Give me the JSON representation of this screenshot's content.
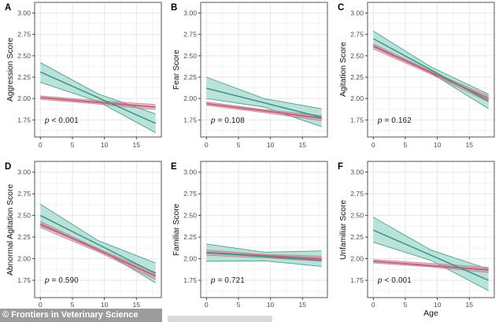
{
  "figure": {
    "watermark": "© Frontiers in Veterinary Science",
    "x_axis_label": "Age"
  },
  "chart_data": {
    "type": "line",
    "description": "Six-panel faceted regression figure: behaviour scores vs Age, each panel has a green trend line with wide confidence ribbon and a red trend line with narrow confidence ribbon, with p-value annotation",
    "x_ticks": [
      0,
      5,
      10,
      15
    ],
    "y_ticks": [
      "1.75",
      "2.00",
      "2.25",
      "2.50",
      "2.75",
      "3.00"
    ],
    "xlim": [
      -0.9,
      18.9
    ],
    "ylim": [
      1.55,
      3.125
    ],
    "xlabel": "Age",
    "grid": "on",
    "legend": "none",
    "colors": {
      "green_line": "#3f9189",
      "green_band": "#b9e3d8",
      "green_edge": "#4f9e92",
      "red_line": "#bc5a6f",
      "red_band": "#c97f92",
      "red_edge": "#c4748a",
      "grid_major": "#e6e6e6",
      "grid_minor": "#f2f2f2",
      "border": "#545454",
      "tick": "#333333",
      "tick_text": "#4d4d4d"
    },
    "panels": [
      {
        "label": "A",
        "ylabel": "Aggression Score",
        "p_symbol": "p",
        "p_rest": " < 0.001",
        "green": {
          "x": [
            0,
            18
          ],
          "y": [
            2.31,
            1.71
          ],
          "band_x": [
            0,
            9,
            18
          ],
          "upper": [
            2.42,
            2.055,
            1.82
          ],
          "lower": [
            2.19,
            1.965,
            1.6
          ]
        },
        "red": {
          "x": [
            0,
            18
          ],
          "y": [
            2.01,
            1.9
          ],
          "band_x": [
            0,
            9,
            18
          ],
          "upper": [
            2.03,
            1.975,
            1.93
          ],
          "lower": [
            1.99,
            1.935,
            1.87
          ]
        }
      },
      {
        "label": "B",
        "ylabel": "Fear Score",
        "p_symbol": "p",
        "p_rest": " = 0.108",
        "green": {
          "x": [
            0,
            18
          ],
          "y": [
            2.12,
            1.78
          ],
          "band_x": [
            0,
            9,
            18
          ],
          "upper": [
            2.25,
            2.0,
            1.88
          ],
          "lower": [
            2.0,
            1.9,
            1.67
          ]
        },
        "red": {
          "x": [
            0,
            18
          ],
          "y": [
            1.94,
            1.77
          ],
          "band_x": [
            0,
            9,
            18
          ],
          "upper": [
            1.96,
            1.87,
            1.8
          ],
          "lower": [
            1.92,
            1.835,
            1.74
          ]
        }
      },
      {
        "label": "C",
        "ylabel": "Agitation Score",
        "p_symbol": "p",
        "p_rest": " = 0.162",
        "green": {
          "x": [
            0,
            18
          ],
          "y": [
            2.7,
            1.97
          ],
          "band_x": [
            0,
            9,
            18
          ],
          "upper": [
            2.79,
            2.37,
            2.05
          ],
          "lower": [
            2.62,
            2.3,
            1.88
          ]
        },
        "red": {
          "x": [
            0,
            18
          ],
          "y": [
            2.61,
            2.0
          ],
          "band_x": [
            0,
            9,
            18
          ],
          "upper": [
            2.64,
            2.32,
            2.03
          ],
          "lower": [
            2.58,
            2.285,
            1.96
          ]
        }
      },
      {
        "label": "D",
        "ylabel": "Abnormal Agitation Score",
        "p_symbol": "p",
        "p_rest": " = 0.590",
        "green": {
          "x": [
            0,
            18
          ],
          "y": [
            2.5,
            1.83
          ],
          "band_x": [
            0,
            9,
            18
          ],
          "upper": [
            2.63,
            2.21,
            1.95
          ],
          "lower": [
            2.38,
            2.12,
            1.72
          ]
        },
        "red": {
          "x": [
            0,
            18
          ],
          "y": [
            2.4,
            1.8
          ],
          "band_x": [
            0,
            9,
            18
          ],
          "upper": [
            2.43,
            2.115,
            1.84
          ],
          "lower": [
            2.36,
            2.08,
            1.76
          ]
        }
      },
      {
        "label": "E",
        "ylabel": "Familiar Score",
        "p_symbol": "p",
        "p_rest": " = 0.721",
        "green": {
          "x": [
            0,
            18
          ],
          "y": [
            2.07,
            1.98
          ],
          "band_x": [
            0,
            9,
            18
          ],
          "upper": [
            2.17,
            2.075,
            2.09
          ],
          "lower": [
            1.97,
            1.975,
            1.91
          ]
        },
        "red": {
          "x": [
            0,
            18
          ],
          "y": [
            2.07,
            2.0
          ],
          "band_x": [
            0,
            9,
            18
          ],
          "upper": [
            2.1,
            2.05,
            2.03
          ],
          "lower": [
            2.04,
            2.01,
            1.97
          ]
        }
      },
      {
        "label": "F",
        "ylabel": "Unfamiliar Score",
        "p_symbol": "p",
        "p_rest": " < 0.001",
        "green": {
          "x": [
            0,
            18
          ],
          "y": [
            2.33,
            1.75
          ],
          "band_x": [
            0,
            9,
            18
          ],
          "upper": [
            2.48,
            2.1,
            1.88
          ],
          "lower": [
            2.19,
            1.98,
            1.63
          ]
        },
        "red": {
          "x": [
            0,
            18
          ],
          "y": [
            1.97,
            1.87
          ],
          "band_x": [
            0,
            9,
            18
          ],
          "upper": [
            1.99,
            1.945,
            1.9
          ],
          "lower": [
            1.95,
            1.905,
            1.84
          ]
        }
      }
    ]
  }
}
